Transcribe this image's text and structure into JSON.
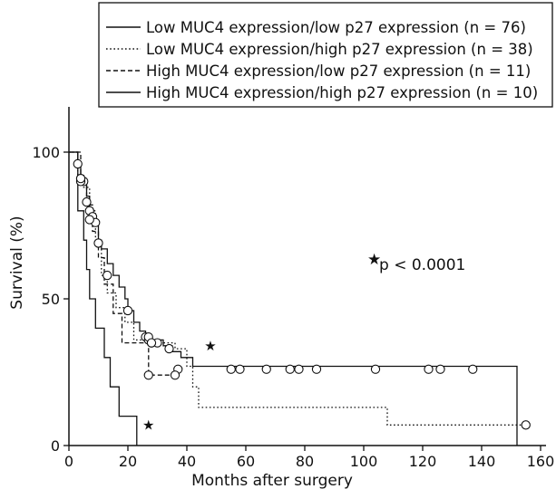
{
  "chart_data": {
    "type": "line",
    "subtype": "kaplan-meier",
    "xlabel": "Months after surgery",
    "ylabel": "Survival (%)",
    "xlim": [
      0,
      160
    ],
    "ylim": [
      0,
      100
    ],
    "xticks": [
      "0",
      "20",
      "40",
      "60",
      "80",
      "100",
      "120",
      "140",
      "160"
    ],
    "yticks": [
      "0",
      "50",
      "100"
    ],
    "grid": false,
    "legend_position": "top",
    "annotation": "p < 0.0001",
    "annotation_marker": "★",
    "series": [
      {
        "name": "Low MUC4 expression/low p27 expression (n = 76)",
        "line_style": "solid",
        "steps": [
          [
            0,
            100
          ],
          [
            3,
            96
          ],
          [
            4,
            92
          ],
          [
            5,
            89
          ],
          [
            6,
            85
          ],
          [
            7,
            81
          ],
          [
            8,
            78
          ],
          [
            9,
            75
          ],
          [
            10,
            70
          ],
          [
            11,
            67
          ],
          [
            13,
            62
          ],
          [
            15,
            58
          ],
          [
            17,
            54
          ],
          [
            19,
            50
          ],
          [
            20,
            46
          ],
          [
            22,
            42
          ],
          [
            24,
            39
          ],
          [
            26,
            37
          ],
          [
            28,
            36
          ],
          [
            32,
            34
          ],
          [
            35,
            32
          ],
          [
            38,
            30
          ],
          [
            42,
            27
          ],
          [
            152,
            27
          ],
          [
            152,
            0
          ]
        ],
        "censored": [
          [
            3,
            96
          ],
          [
            4,
            91
          ],
          [
            5,
            90
          ],
          [
            6,
            83
          ],
          [
            7,
            80
          ],
          [
            8,
            78
          ],
          [
            9,
            76
          ],
          [
            13,
            58
          ],
          [
            20,
            46
          ],
          [
            26,
            37
          ],
          [
            27,
            36
          ],
          [
            28,
            35
          ],
          [
            30,
            35
          ],
          [
            34,
            33
          ],
          [
            37,
            26
          ],
          [
            55,
            26
          ],
          [
            58,
            26
          ],
          [
            67,
            26
          ],
          [
            75,
            26
          ],
          [
            78,
            26
          ],
          [
            84,
            26
          ],
          [
            104,
            26
          ],
          [
            122,
            26
          ],
          [
            126,
            26
          ],
          [
            137,
            26
          ]
        ]
      },
      {
        "name": "Low MUC4 expression/high p27 expression (n = 38)",
        "line_style": "dotted",
        "steps": [
          [
            0,
            100
          ],
          [
            3,
            92
          ],
          [
            5,
            88
          ],
          [
            7,
            80
          ],
          [
            9,
            69
          ],
          [
            11,
            58
          ],
          [
            13,
            52
          ],
          [
            16,
            47
          ],
          [
            19,
            42
          ],
          [
            22,
            36
          ],
          [
            26,
            35
          ],
          [
            36,
            33
          ],
          [
            40,
            27
          ],
          [
            42,
            20
          ],
          [
            44,
            13
          ],
          [
            108,
            13
          ],
          [
            108,
            7
          ],
          [
            155,
            7
          ]
        ],
        "censored": [
          [
            4,
            90
          ],
          [
            7,
            77
          ],
          [
            10,
            69
          ],
          [
            27,
            37
          ],
          [
            28,
            35
          ],
          [
            155,
            7
          ]
        ]
      },
      {
        "name": "High MUC4 expression/low p27 expression (n = 11)",
        "line_style": "dashed",
        "steps": [
          [
            0,
            100
          ],
          [
            4,
            91
          ],
          [
            6,
            82
          ],
          [
            8,
            73
          ],
          [
            10,
            64
          ],
          [
            12,
            55
          ],
          [
            15,
            45
          ],
          [
            18,
            35
          ],
          [
            27,
            24
          ],
          [
            36,
            24
          ],
          [
            37,
            26
          ],
          [
            38,
            26
          ]
        ],
        "censored": [
          [
            4,
            91
          ],
          [
            27,
            24
          ],
          [
            36,
            24
          ]
        ]
      },
      {
        "name": "High MUC4 expression/high p27 expression (n = 10)",
        "line_style": "solid",
        "steps": [
          [
            0,
            100
          ],
          [
            3,
            80
          ],
          [
            5,
            70
          ],
          [
            6,
            60
          ],
          [
            7,
            50
          ],
          [
            9,
            40
          ],
          [
            12,
            30
          ],
          [
            14,
            20
          ],
          [
            17,
            10
          ],
          [
            23,
            10
          ],
          [
            23,
            0
          ]
        ],
        "censored": []
      }
    ],
    "star_markers": [
      [
        27,
        7
      ],
      [
        48,
        34
      ]
    ]
  }
}
